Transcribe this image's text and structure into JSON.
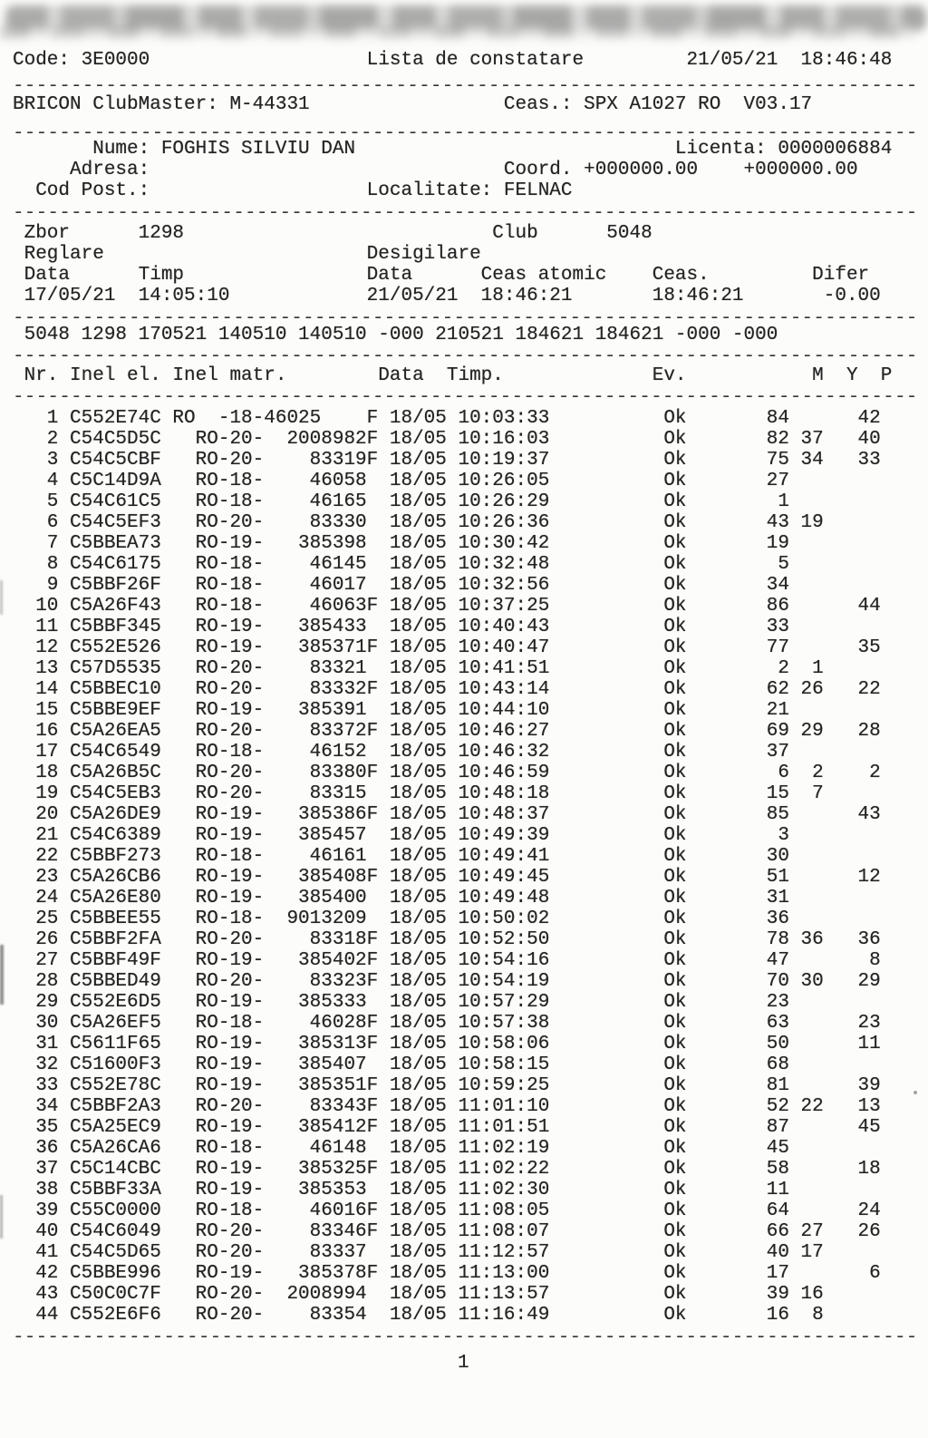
{
  "page": {
    "ink_color": "#242424",
    "paper_color": "#fcfcfa",
    "separator": "------------------------------------------------------------------------------",
    "page_number": "1",
    "lines": [
      {
        "name": "title-line",
        "segments": [
          {
            "c": 0,
            "t": "Code: 3E0000"
          },
          {
            "c": 31,
            "t": "Lista de constatare"
          },
          {
            "c": 59,
            "t": "21/05/21  18:46:48"
          }
        ]
      },
      {
        "name": "separator"
      },
      {
        "name": "device-line",
        "segments": [
          {
            "c": 0,
            "t": "BRICON ClubMaster: M-44331"
          },
          {
            "c": 43,
            "t": "Ceas.: SPX A1027 RO  V03.17"
          }
        ]
      },
      {
        "name": "separator"
      },
      {
        "name": "owner-name-line",
        "segments": [
          {
            "c": 7,
            "t": "Nume: FOGHIS SILVIU DAN"
          },
          {
            "c": 58,
            "t": "Licenta: 0000006884"
          }
        ]
      },
      {
        "name": "owner-address-line",
        "segments": [
          {
            "c": 5,
            "t": "Adresa:"
          },
          {
            "c": 43,
            "t": "Coord. +000000.00    +000000.00"
          }
        ]
      },
      {
        "name": "owner-postcode-line",
        "segments": [
          {
            "c": 2,
            "t": "Cod Post.:"
          },
          {
            "c": 31,
            "t": "Localitate: FELNAC"
          }
        ]
      },
      {
        "name": "separator"
      },
      {
        "name": "flight-club-line",
        "segments": [
          {
            "c": 1,
            "t": "Zbor"
          },
          {
            "c": 11,
            "t": "1298"
          },
          {
            "c": 42,
            "t": "Club"
          },
          {
            "c": 52,
            "t": "5048"
          }
        ]
      },
      {
        "name": "section-labels-line",
        "segments": [
          {
            "c": 1,
            "t": "Reglare"
          },
          {
            "c": 31,
            "t": "Desigilare"
          }
        ]
      },
      {
        "name": "clock-columns-line",
        "segments": [
          {
            "c": 1,
            "t": "Data"
          },
          {
            "c": 11,
            "t": "Timp"
          },
          {
            "c": 31,
            "t": "Data"
          },
          {
            "c": 41,
            "t": "Ceas atomic"
          },
          {
            "c": 56,
            "t": "Ceas."
          },
          {
            "c": 70,
            "t": "Difer"
          }
        ]
      },
      {
        "name": "clock-values-line",
        "segments": [
          {
            "c": 1,
            "t": "17/05/21"
          },
          {
            "c": 11,
            "t": "14:05:10"
          },
          {
            "c": 31,
            "t": "21/05/21"
          },
          {
            "c": 41,
            "t": "18:46:21"
          },
          {
            "c": 56,
            "t": "18:46:21"
          },
          {
            "c": 71,
            "t": "-0.00"
          }
        ]
      },
      {
        "name": "separator"
      },
      {
        "name": "raw-data-line",
        "segments": [
          {
            "c": 1,
            "t": "5048 1298 170521 140510 140510 -000 210521 184621 184621 -000 -000"
          }
        ]
      },
      {
        "name": "separator"
      },
      {
        "name": "table-header-line",
        "segments": [
          {
            "c": 1,
            "t": "Nr."
          },
          {
            "c": 5,
            "t": "Inel el."
          },
          {
            "c": 14,
            "t": "Inel matr."
          },
          {
            "c": 32,
            "t": "Data"
          },
          {
            "c": 38,
            "t": "Timp."
          },
          {
            "c": 56,
            "t": "Ev."
          },
          {
            "c": 70,
            "t": "M"
          },
          {
            "c": 73,
            "t": "Y"
          },
          {
            "c": 76,
            "t": "P"
          }
        ]
      },
      {
        "name": "separator"
      }
    ],
    "table": {
      "columns": [
        "Nr.",
        "Inel el.",
        "Inel matr.",
        "Data",
        "Timp.",
        "Ev.",
        "M",
        "Y",
        "P"
      ],
      "rows": [
        [
          "1",
          "C552E74C",
          "RO  -18-46025    F",
          "18/05",
          "10:03:33",
          "Ok",
          "84",
          "",
          "42"
        ],
        [
          "2",
          "C54C5D5C",
          "  RO-20-  2008982F",
          "18/05",
          "10:16:03",
          "Ok",
          "82",
          "37",
          "40"
        ],
        [
          "3",
          "C54C5CBF",
          "  RO-20-    83319F",
          "18/05",
          "10:19:37",
          "Ok",
          "75",
          "34",
          "33"
        ],
        [
          "4",
          "C5C14D9A",
          "  RO-18-    46058 ",
          "18/05",
          "10:26:05",
          "Ok",
          "27",
          "",
          ""
        ],
        [
          "5",
          "C54C61C5",
          "  RO-18-    46165 ",
          "18/05",
          "10:26:29",
          "Ok",
          "1",
          "",
          ""
        ],
        [
          "6",
          "C54C5EF3",
          "  RO-20-    83330 ",
          "18/05",
          "10:26:36",
          "Ok",
          "43",
          "19",
          ""
        ],
        [
          "7",
          "C5BBEA73",
          "  RO-19-   385398 ",
          "18/05",
          "10:30:42",
          "Ok",
          "19",
          "",
          ""
        ],
        [
          "8",
          "C54C6175",
          "  RO-18-    46145 ",
          "18/05",
          "10:32:48",
          "Ok",
          "5",
          "",
          ""
        ],
        [
          "9",
          "C5BBF26F",
          "  RO-18-    46017 ",
          "18/05",
          "10:32:56",
          "Ok",
          "34",
          "",
          ""
        ],
        [
          "10",
          "C5A26F43",
          "  RO-18-    46063F",
          "18/05",
          "10:37:25",
          "Ok",
          "86",
          "",
          "44"
        ],
        [
          "11",
          "C5BBF345",
          "  RO-19-   385433 ",
          "18/05",
          "10:40:43",
          "Ok",
          "33",
          "",
          ""
        ],
        [
          "12",
          "C552E526",
          "  RO-19-   385371F",
          "18/05",
          "10:40:47",
          "Ok",
          "77",
          "",
          "35"
        ],
        [
          "13",
          "C57D5535",
          "  RO-20-    83321 ",
          "18/05",
          "10:41:51",
          "Ok",
          "2",
          "1",
          ""
        ],
        [
          "14",
          "C5BBEC10",
          "  RO-20-    83332F",
          "18/05",
          "10:43:14",
          "Ok",
          "62",
          "26",
          "22"
        ],
        [
          "15",
          "C5BBE9EF",
          "  RO-19-   385391 ",
          "18/05",
          "10:44:10",
          "Ok",
          "21",
          "",
          ""
        ],
        [
          "16",
          "C5A26EA5",
          "  RO-20-    83372F",
          "18/05",
          "10:46:27",
          "Ok",
          "69",
          "29",
          "28"
        ],
        [
          "17",
          "C54C6549",
          "  RO-18-    46152 ",
          "18/05",
          "10:46:32",
          "Ok",
          "37",
          "",
          ""
        ],
        [
          "18",
          "C5A26B5C",
          "  RO-20-    83380F",
          "18/05",
          "10:46:59",
          "Ok",
          "6",
          "2",
          "2"
        ],
        [
          "19",
          "C54C5EB3",
          "  RO-20-    83315 ",
          "18/05",
          "10:48:18",
          "Ok",
          "15",
          "7",
          ""
        ],
        [
          "20",
          "C5A26DE9",
          "  RO-19-   385386F",
          "18/05",
          "10:48:37",
          "Ok",
          "85",
          "",
          "43"
        ],
        [
          "21",
          "C54C6389",
          "  RO-19-   385457 ",
          "18/05",
          "10:49:39",
          "Ok",
          "3",
          "",
          ""
        ],
        [
          "22",
          "C5BBF273",
          "  RO-18-    46161 ",
          "18/05",
          "10:49:41",
          "Ok",
          "30",
          "",
          ""
        ],
        [
          "23",
          "C5A26CB6",
          "  RO-19-   385408F",
          "18/05",
          "10:49:45",
          "Ok",
          "51",
          "",
          "12"
        ],
        [
          "24",
          "C5A26E80",
          "  RO-19-   385400 ",
          "18/05",
          "10:49:48",
          "Ok",
          "31",
          "",
          ""
        ],
        [
          "25",
          "C5BBEE55",
          "  RO-18-  9013209 ",
          "18/05",
          "10:50:02",
          "Ok",
          "36",
          "",
          ""
        ],
        [
          "26",
          "C5BBF2FA",
          "  RO-20-    83318F",
          "18/05",
          "10:52:50",
          "Ok",
          "78",
          "36",
          "36"
        ],
        [
          "27",
          "C5BBF49F",
          "  RO-19-   385402F",
          "18/05",
          "10:54:16",
          "Ok",
          "47",
          "",
          "8"
        ],
        [
          "28",
          "C5BBED49",
          "  RO-20-    83323F",
          "18/05",
          "10:54:19",
          "Ok",
          "70",
          "30",
          "29"
        ],
        [
          "29",
          "C552E6D5",
          "  RO-19-   385333 ",
          "18/05",
          "10:57:29",
          "Ok",
          "23",
          "",
          ""
        ],
        [
          "30",
          "C5A26EF5",
          "  RO-18-    46028F",
          "18/05",
          "10:57:38",
          "Ok",
          "63",
          "",
          "23"
        ],
        [
          "31",
          "C5611F65",
          "  RO-19-   385313F",
          "18/05",
          "10:58:06",
          "Ok",
          "50",
          "",
          "11"
        ],
        [
          "32",
          "C51600F3",
          "  RO-19-   385407 ",
          "18/05",
          "10:58:15",
          "Ok",
          "68",
          "",
          ""
        ],
        [
          "33",
          "C552E78C",
          "  RO-19-   385351F",
          "18/05",
          "10:59:25",
          "Ok",
          "81",
          "",
          "39"
        ],
        [
          "34",
          "C5BBF2A3",
          "  RO-20-    83343F",
          "18/05",
          "11:01:10",
          "Ok",
          "52",
          "22",
          "13"
        ],
        [
          "35",
          "C5A25EC9",
          "  RO-19-   385412F",
          "18/05",
          "11:01:51",
          "Ok",
          "87",
          "",
          "45"
        ],
        [
          "36",
          "C5A26CA6",
          "  RO-18-    46148 ",
          "18/05",
          "11:02:19",
          "Ok",
          "45",
          "",
          ""
        ],
        [
          "37",
          "C5C14CBC",
          "  RO-19-   385325F",
          "18/05",
          "11:02:22",
          "Ok",
          "58",
          "",
          "18"
        ],
        [
          "38",
          "C5BBF33A",
          "  RO-19-   385353 ",
          "18/05",
          "11:02:30",
          "Ok",
          "11",
          "",
          ""
        ],
        [
          "39",
          "C55C0000",
          "  RO-18-    46016F",
          "18/05",
          "11:08:05",
          "Ok",
          "64",
          "",
          "24"
        ],
        [
          "40",
          "C54C6049",
          "  RO-20-    83346F",
          "18/05",
          "11:08:07",
          "Ok",
          "66",
          "27",
          "26"
        ],
        [
          "41",
          "C54C5D65",
          "  RO-20-    83337 ",
          "18/05",
          "11:12:57",
          "Ok",
          "40",
          "17",
          ""
        ],
        [
          "42",
          "C5BBE996",
          "  RO-19-   385378F",
          "18/05",
          "11:13:00",
          "Ok",
          "17",
          "",
          "6"
        ],
        [
          "43",
          "C50C0C7F",
          "  RO-20-  2008994 ",
          "18/05",
          "11:13:57",
          "Ok",
          "39",
          "16",
          ""
        ],
        [
          "44",
          "C552E6F6",
          "  RO-20-    83354 ",
          "18/05",
          "11:16:49",
          "Ok",
          "16",
          "8",
          ""
        ]
      ]
    }
  }
}
